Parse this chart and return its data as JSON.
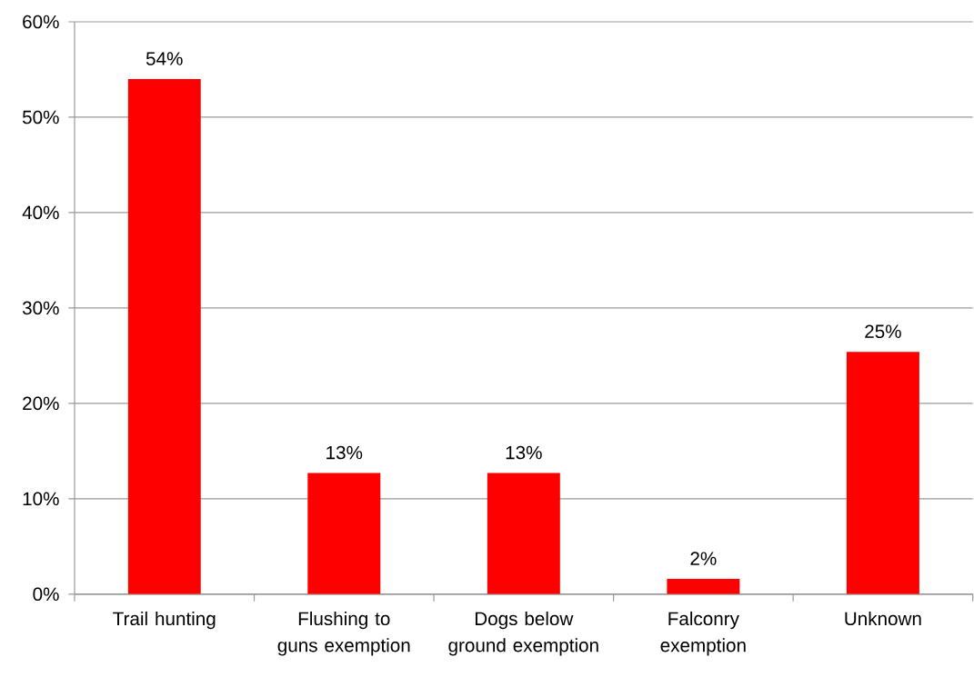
{
  "chart_data": {
    "type": "bar",
    "categories": [
      "Trail hunting",
      "Flushing to guns exemption",
      "Dogs below ground exemption",
      "Falconry exemption",
      "Unknown"
    ],
    "values": [
      54,
      12.7,
      12.7,
      1.6,
      25.4
    ],
    "value_labels": [
      "54%",
      "13%",
      "13%",
      "2%",
      "25%"
    ],
    "color": "#ff0000",
    "ylim": [
      0,
      60
    ],
    "yticks": [
      {
        "value": 0,
        "label": "0%"
      },
      {
        "value": 10,
        "label": "10%"
      },
      {
        "value": 20,
        "label": "20%"
      },
      {
        "value": 30,
        "label": "30%"
      },
      {
        "value": 40,
        "label": "40%"
      },
      {
        "value": 50,
        "label": "50%"
      },
      {
        "value": 60,
        "label": "60%"
      }
    ],
    "grid": "y"
  }
}
